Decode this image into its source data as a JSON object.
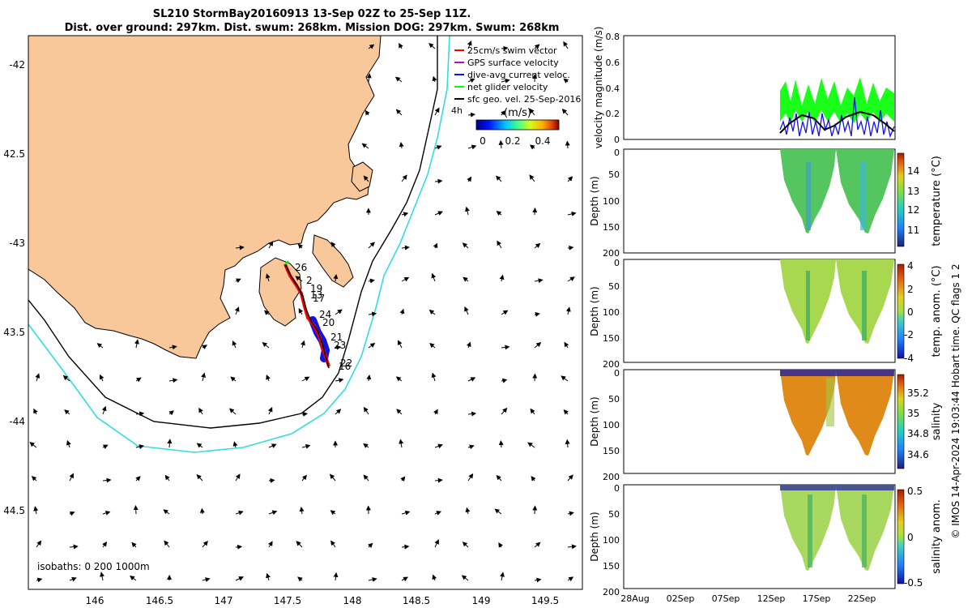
{
  "title_line_1": "SL210 StormBay20160913 13-Sep 02Z to 25-Sep 11Z.",
  "title_line_2": "Dist. over ground: 297km. Dist. swum: 268km. Mission DOG: 297km. Swum: 268km",
  "credit": "© IMOS 14-Apr-2024 19:03:44 Hobart time. QC flags 1 2",
  "colors": {
    "land": "#f9c89a",
    "cyan_isobath": "#33dddd",
    "track_red": "#ff0000",
    "dive_blue": "#1010ee",
    "net_green": "#00ff00",
    "geo_black": "#000000"
  },
  "map": {
    "lon_ticks": [
      "146",
      "146.5",
      "147",
      "147.5",
      "148",
      "148.5",
      "149",
      "149.5"
    ],
    "lat_ticks": [
      "-42",
      "42.5",
      "-43",
      "43.5",
      "-44",
      "44.5"
    ],
    "isobaths_label": "isobaths: 0   200  1000m",
    "legend": [
      {
        "label": "25cm/s swim vector",
        "color": "#ff0000"
      },
      {
        "label": "GPS surface velocity",
        "color": "#cc00cc"
      },
      {
        "label": "dive-avg current veloc.",
        "color": "#1010ee"
      },
      {
        "label": "net glider velocity",
        "color": "#00ff00"
      },
      {
        "label": "sfc geo. vel. 25-Sep-2016",
        "color": "#000000"
      }
    ],
    "hours_label": "4h",
    "colorbar_unit": "(m/s)",
    "colorbar_ticks": [
      "0",
      "0.2",
      "0.4"
    ],
    "track_day_labels": [
      "26",
      "2",
      "19",
      "17",
      "13",
      "24",
      "20",
      "21",
      "23",
      "22",
      "16"
    ]
  },
  "right_panels": {
    "date_ticks": [
      "28Aug",
      "02Sep",
      "07Sep",
      "12Sep",
      "17Sep",
      "22Sep"
    ],
    "velocity": {
      "ylabel": "velocity magnitude (m/s)",
      "ticks": [
        "0",
        "0.2",
        "0.4",
        "0.6",
        "0.8"
      ]
    },
    "panels": [
      {
        "ylabel": "Depth (m)",
        "cbar_label": "temperature (°C)",
        "ticks": [
          "0",
          "50",
          "100",
          "150",
          "200"
        ],
        "cbar_ticks": [
          "14",
          "13",
          "12",
          "11"
        ]
      },
      {
        "ylabel": "Depth (m)",
        "cbar_label": "temp. anom. (°C)",
        "ticks": [
          "0",
          "50",
          "100",
          "150",
          "200"
        ],
        "cbar_ticks": [
          "4",
          "2",
          "0",
          "-2",
          "-4"
        ]
      },
      {
        "ylabel": "Depth (m)",
        "cbar_label": "salinity",
        "ticks": [
          "0",
          "50",
          "100",
          "150",
          "200"
        ],
        "cbar_ticks": [
          "35.2",
          "35",
          "34.8",
          "34.6"
        ]
      },
      {
        "ylabel": "Depth (m)",
        "cbar_label": "salinity anom.",
        "ticks": [
          "0",
          "50",
          "100",
          "150",
          "200"
        ],
        "cbar_ticks": [
          "0.5",
          "0",
          "-0.5"
        ]
      }
    ]
  }
}
